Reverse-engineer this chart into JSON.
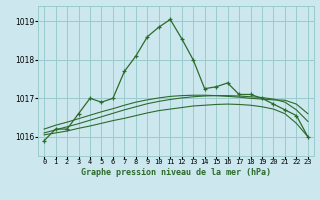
{
  "title": "Graphe pression niveau de la mer (hPa)",
  "bg_color": "#cce8ee",
  "grid_color": "#99cccc",
  "line_color": "#2d6a2d",
  "x_labels": [
    "0",
    "1",
    "2",
    "3",
    "4",
    "5",
    "6",
    "7",
    "8",
    "9",
    "10",
    "11",
    "12",
    "13",
    "14",
    "15",
    "16",
    "17",
    "18",
    "19",
    "20",
    "21",
    "22",
    "23"
  ],
  "ylim": [
    1015.5,
    1019.4
  ],
  "yticks": [
    1016,
    1017,
    1018,
    1019
  ],
  "main_line": [
    1015.9,
    1016.2,
    1016.2,
    1016.6,
    1017.0,
    1016.9,
    1017.0,
    1017.7,
    1018.1,
    1018.6,
    1018.85,
    1019.05,
    1018.55,
    1018.0,
    1017.25,
    1017.3,
    1017.4,
    1017.1,
    1017.1,
    1017.0,
    1016.85,
    1016.7,
    1016.55,
    1016.0
  ],
  "smooth_line1": [
    1016.05,
    1016.1,
    1016.15,
    1016.22,
    1016.28,
    1016.35,
    1016.42,
    1016.48,
    1016.55,
    1016.62,
    1016.68,
    1016.72,
    1016.76,
    1016.8,
    1016.82,
    1016.84,
    1016.85,
    1016.84,
    1016.82,
    1016.78,
    1016.72,
    1016.6,
    1016.35,
    1016.0
  ],
  "smooth_line2": [
    1016.1,
    1016.18,
    1016.26,
    1016.34,
    1016.43,
    1016.52,
    1016.61,
    1016.7,
    1016.78,
    1016.86,
    1016.92,
    1016.97,
    1017.01,
    1017.04,
    1017.06,
    1017.07,
    1017.07,
    1017.06,
    1017.04,
    1017.02,
    1016.98,
    1016.9,
    1016.7,
    1016.4
  ],
  "smooth_line3": [
    1016.2,
    1016.3,
    1016.38,
    1016.47,
    1016.56,
    1016.65,
    1016.73,
    1016.82,
    1016.9,
    1016.96,
    1017.01,
    1017.05,
    1017.07,
    1017.08,
    1017.08,
    1017.07,
    1017.05,
    1017.03,
    1017.0,
    1016.98,
    1016.96,
    1016.95,
    1016.85,
    1016.6
  ]
}
